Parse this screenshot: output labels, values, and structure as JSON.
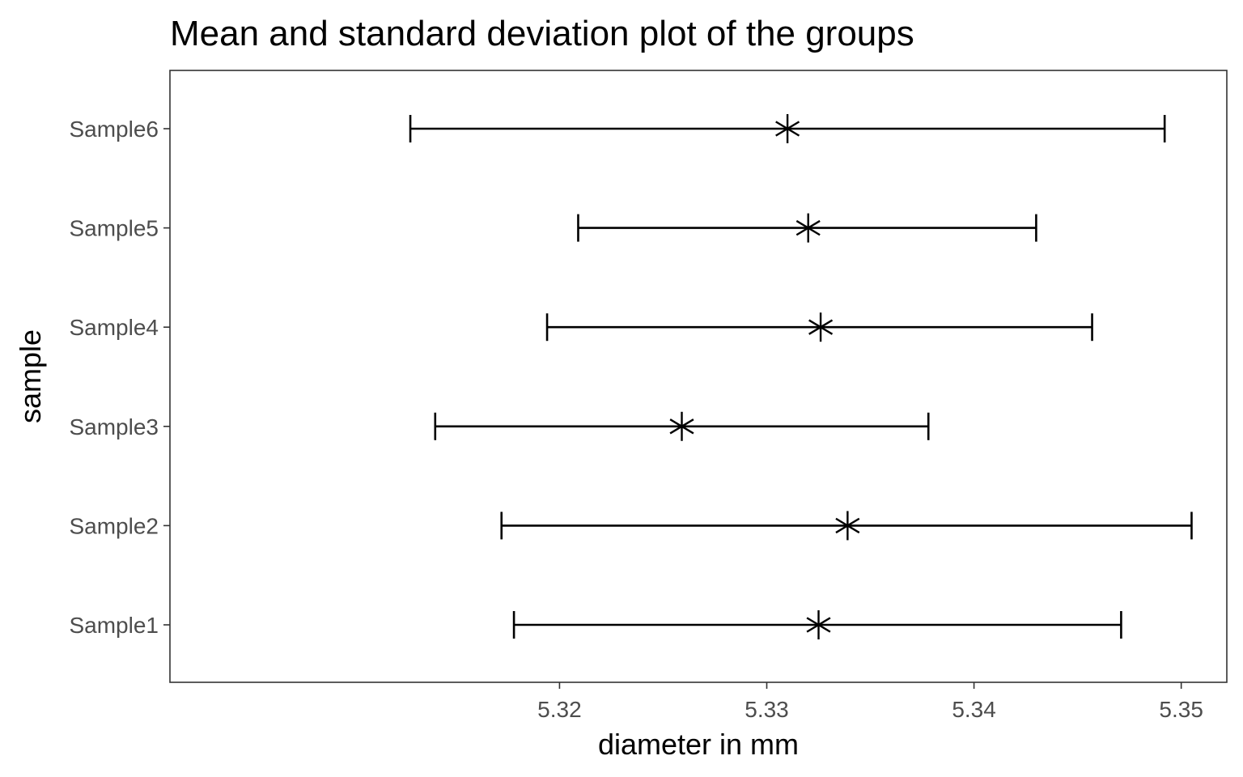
{
  "chart_data": {
    "type": "errorbar",
    "title": "Mean and standard deviation plot of the groups",
    "xlabel": "diameter in mm",
    "ylabel": "sample",
    "xlim": [
      5.3012,
      5.3522
    ],
    "x_ticks": [
      "5.32",
      "5.33",
      "5.34",
      "5.35"
    ],
    "x_tick_values": [
      5.32,
      5.33,
      5.34,
      5.35
    ],
    "categories": [
      "Sample1",
      "Sample2",
      "Sample3",
      "Sample4",
      "Sample5",
      "Sample6"
    ],
    "series": [
      {
        "mean": [
          5.3325,
          5.3339,
          5.3259,
          5.3326,
          5.332,
          5.331
        ],
        "lower": [
          5.3178,
          5.3172,
          5.314,
          5.3194,
          5.3209,
          5.3128
        ],
        "upper": [
          5.3471,
          5.3505,
          5.3378,
          5.3457,
          5.343,
          5.3492
        ]
      }
    ],
    "marker": "asterisk",
    "grid": false,
    "legend": "none",
    "colors": {
      "marks": "#000000",
      "panel_border": "#333333",
      "tick_text": "#4d4d4d",
      "background": "#ffffff"
    }
  }
}
